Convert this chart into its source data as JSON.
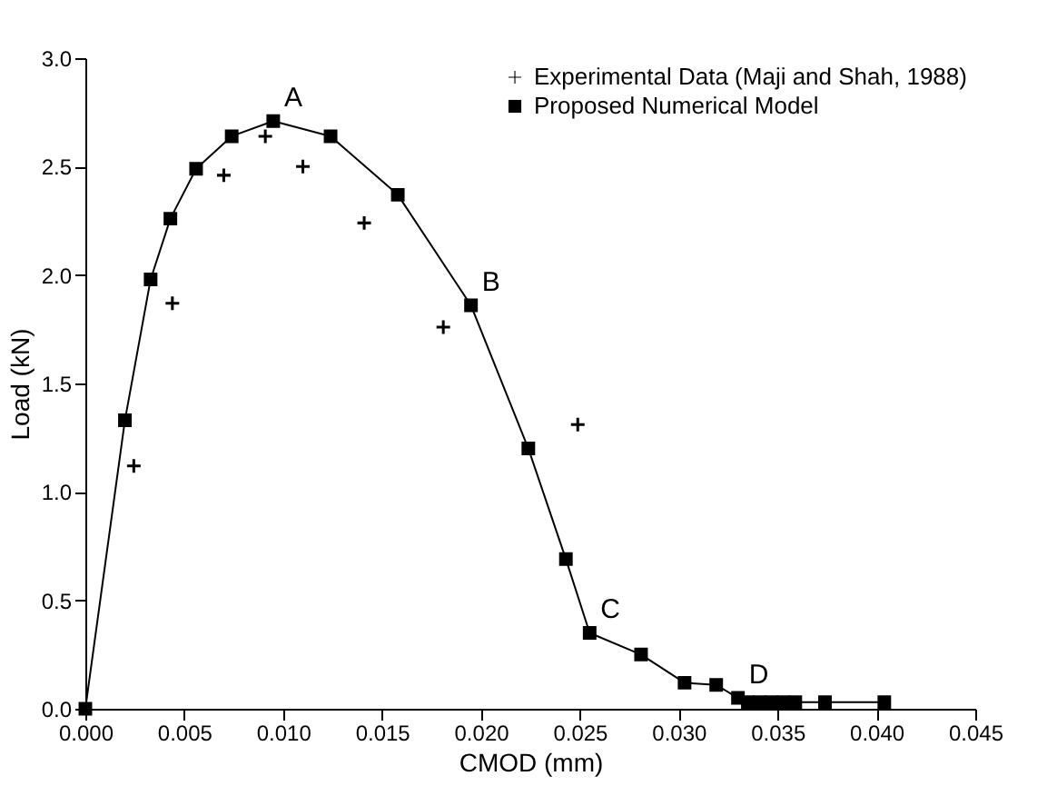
{
  "chart_data": {
    "type": "line",
    "xlabel": "CMOD (mm)",
    "ylabel": "Load (kN)",
    "xlim": [
      0,
      0.045
    ],
    "ylim": [
      0,
      3.0
    ],
    "xticks": [
      {
        "value": 0,
        "label": "0.000"
      },
      {
        "value": 0.005,
        "label": "0.005"
      },
      {
        "value": 0.01,
        "label": "0.010"
      },
      {
        "value": 0.015,
        "label": "0.015"
      },
      {
        "value": 0.02,
        "label": "0.020"
      },
      {
        "value": 0.025,
        "label": "0.025"
      },
      {
        "value": 0.03,
        "label": "0.030"
      },
      {
        "value": 0.035,
        "label": "0.035"
      },
      {
        "value": 0.04,
        "label": "0.040"
      },
      {
        "value": 0.045,
        "label": "0.045"
      }
    ],
    "yticks": [
      {
        "value": 0,
        "label": "0.0"
      },
      {
        "value": 0.5,
        "label": "0.5"
      },
      {
        "value": 1,
        "label": "1.0"
      },
      {
        "value": 1.5,
        "label": "1.5"
      },
      {
        "value": 2,
        "label": "2.0"
      },
      {
        "value": 2.5,
        "label": "2.5"
      },
      {
        "value": 3,
        "label": "3.0"
      }
    ],
    "legend": "top right",
    "grid": false,
    "series": [
      {
        "name": "Experimental Data (Maji and Shah, 1988)",
        "type": "scatter",
        "marker": "cross",
        "color": "#000000",
        "x": [
          0.00245,
          0.0044,
          0.007,
          0.0091,
          0.011,
          0.0141,
          0.0181,
          0.0249
        ],
        "values": [
          1.12,
          1.87,
          2.46,
          2.64,
          2.5,
          2.24,
          1.76,
          1.31
        ]
      },
      {
        "name": "Proposed Numerical Model",
        "type": "line",
        "marker": "square",
        "color": "#000000",
        "x": [
          0,
          0.002,
          0.0033,
          0.0043,
          0.0056,
          0.0074,
          0.0095,
          0.0124,
          0.0158,
          0.0195,
          0.0224,
          0.0243,
          0.0255,
          0.0281,
          0.0303,
          0.0319,
          0.033,
          0.0335,
          0.0341,
          0.0347,
          0.0353,
          0.0359,
          0.0374,
          0.0404
        ],
        "values": [
          0,
          1.33,
          1.98,
          2.26,
          2.49,
          2.64,
          2.71,
          2.64,
          2.37,
          1.86,
          1.2,
          0.69,
          0.35,
          0.25,
          0.12,
          0.11,
          0.05,
          0.03,
          0.03,
          0.03,
          0.03,
          0.03,
          0.03,
          0.03
        ]
      }
    ],
    "annotations": [
      {
        "text": "A",
        "x": 0.0095,
        "y": 2.71
      },
      {
        "text": "B",
        "x": 0.0195,
        "y": 1.86
      },
      {
        "text": "C",
        "x": 0.0255,
        "y": 0.35
      },
      {
        "text": "D",
        "x": 0.033,
        "y": 0.05
      }
    ]
  }
}
